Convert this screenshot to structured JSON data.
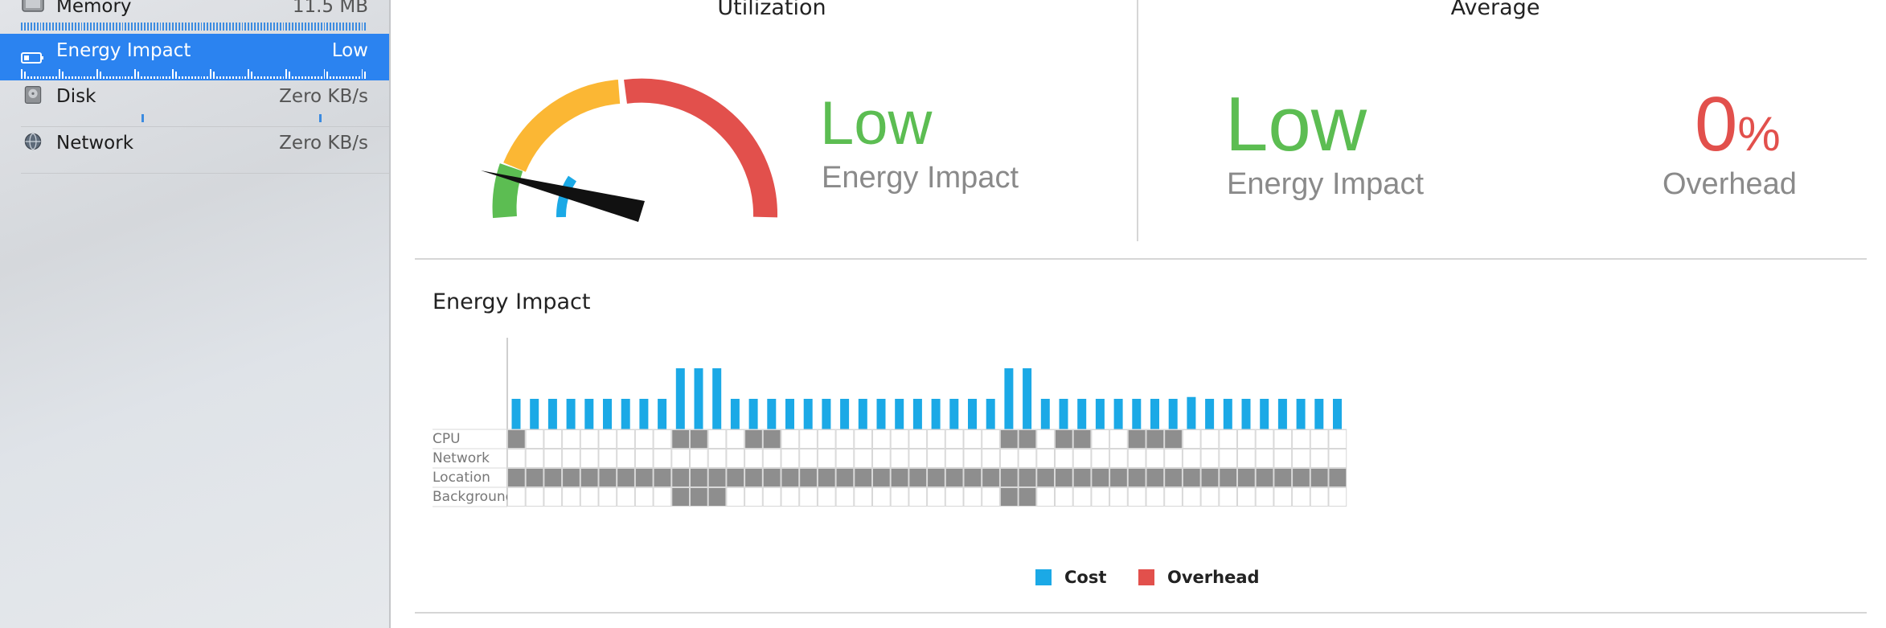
{
  "sidebar": {
    "items": [
      {
        "label": "Memory",
        "value": "11.5 MB",
        "icon": "memory-chip-icon"
      },
      {
        "label": "Energy Impact",
        "value": "Low",
        "icon": "battery-icon",
        "selected": true
      },
      {
        "label": "Disk",
        "value": "Zero KB/s",
        "icon": "disk-drive-icon"
      },
      {
        "label": "Network",
        "value": "Zero KB/s",
        "icon": "globe-icon"
      }
    ]
  },
  "utilization": {
    "title": "Utilization",
    "level": "Low",
    "caption": "Energy Impact",
    "gauge_icon": "speedometer-gauge-icon"
  },
  "average": {
    "title": "Average",
    "impact_level": "Low",
    "impact_caption": "Energy Impact",
    "overhead_value": "0",
    "overhead_unit": "%",
    "overhead_caption": "Overhead"
  },
  "colors": {
    "low_green": "#5cbd52",
    "overhead_red": "#e2504c",
    "gauge_yellow": "#fbb734",
    "cost_blue": "#1ba9e6",
    "cell_gray": "#8e8e8e",
    "selection_blue": "#2b83f0"
  },
  "chart_title": "Energy Impact",
  "chart_data": {
    "type": "bar",
    "bar_count": 46,
    "cost_heights": [
      1,
      1,
      1,
      1,
      1,
      1,
      1,
      1,
      1,
      2,
      2,
      2,
      1,
      1,
      1,
      1,
      1,
      1,
      1,
      1,
      1,
      1,
      1,
      1,
      1,
      1,
      1,
      2,
      2,
      1,
      1,
      1,
      1,
      1,
      1,
      1,
      1,
      1.06,
      1,
      1,
      1,
      1,
      1,
      1,
      1,
      1
    ],
    "overhead_heights": [
      0,
      0,
      0,
      0,
      0,
      0,
      0,
      0,
      0,
      0,
      0,
      0,
      0,
      0,
      0,
      0,
      0,
      0,
      0,
      0,
      0,
      0,
      0,
      0,
      0,
      0,
      0,
      0,
      0,
      0,
      0,
      0,
      0,
      0,
      0,
      0,
      0,
      0,
      0,
      0,
      0,
      0,
      0,
      0,
      0,
      0
    ],
    "rows": [
      {
        "label": "CPU",
        "active": [
          0,
          9,
          10,
          13,
          14,
          27,
          28,
          30,
          31,
          34,
          35,
          36
        ]
      },
      {
        "label": "Network",
        "active": []
      },
      {
        "label": "Location",
        "active": "all"
      },
      {
        "label": "Background",
        "active": [
          9,
          10,
          11,
          27,
          28
        ]
      }
    ],
    "legend": [
      {
        "name": "Cost",
        "color": "#1ba9e6"
      },
      {
        "name": "Overhead",
        "color": "#e2504c"
      }
    ]
  }
}
